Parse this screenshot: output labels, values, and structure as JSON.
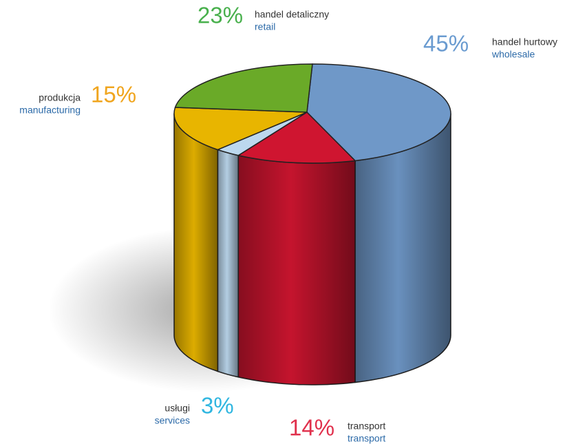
{
  "chart_data": {
    "type": "pie3d",
    "categories": [
      "handel hurtowy",
      "transport",
      "usługi",
      "produkcja",
      "handel detaliczny"
    ],
    "translations": [
      "wholesale",
      "transport",
      "services",
      "manufacturing",
      "retail"
    ],
    "values": [
      45,
      14,
      3,
      15,
      23
    ],
    "value_labels": [
      "45%",
      "14%",
      "3%",
      "15%",
      "23%"
    ],
    "colors": [
      "#6f98c8",
      "#cf1530",
      "#bcd8ee",
      "#e8b500",
      "#6aaa28"
    ],
    "label_colors": [
      "#6a9bd0",
      "#e0304c",
      "#2fb6e0",
      "#f0a51e",
      "#48b04c"
    ]
  }
}
